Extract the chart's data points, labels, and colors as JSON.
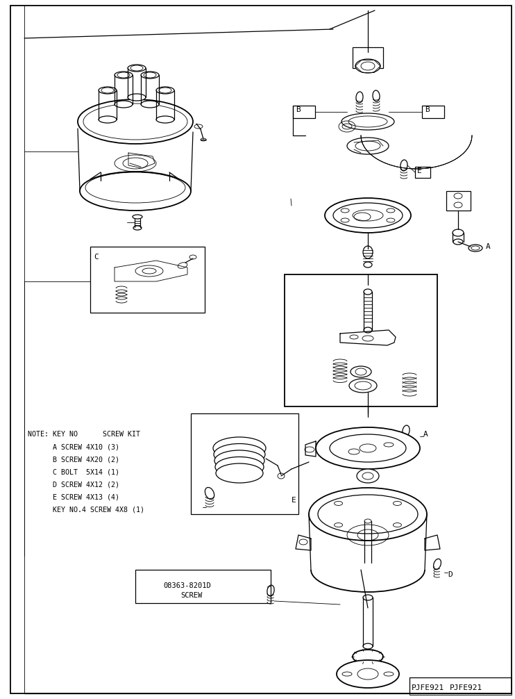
{
  "bg_color": "#ffffff",
  "line_color": "#000000",
  "fig_width": 7.42,
  "fig_height": 10.06,
  "dpi": 100,
  "part_code": "PJFE921",
  "note_lines": [
    "NOTE: KEY NO      SCREW KIT",
    "      A SCREW 4X10 (3)",
    "      B SCREW 4X20 (2)",
    "      C BOLT  5X14 (1)",
    "      D SCREW 4X12 (2)",
    "      E SCREW 4X13 (4)",
    "      KEY NO.4 SCREW 4X8 (1)"
  ],
  "screw_ref": "08363-8201D",
  "screw_ref2": "SCREW"
}
